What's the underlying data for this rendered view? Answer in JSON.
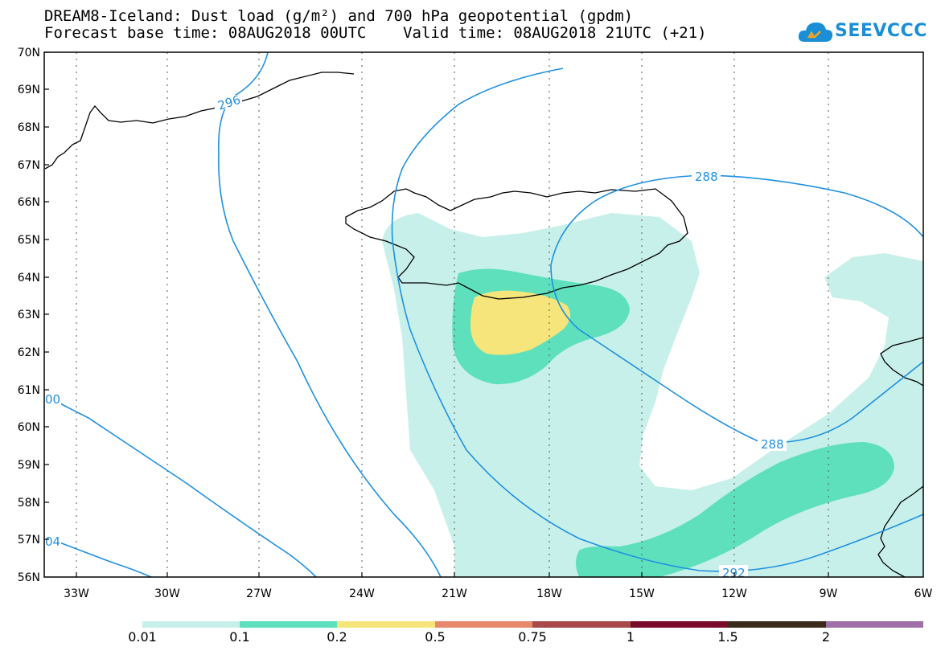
{
  "header": {
    "title_line1": "DREAM8-Iceland: Dust load (g/m²) and 700 hPa geopotential (gpdm)",
    "title_line2": "Forecast base time: 08AUG2018 00UTC    Valid time: 08AUG2018 21UTC (+21)"
  },
  "logo": {
    "text": "SEEVCCC",
    "color": "#1b8fd6"
  },
  "map": {
    "lat_ticks": [
      "70N",
      "69N",
      "68N",
      "67N",
      "66N",
      "65N",
      "64N",
      "63N",
      "62N",
      "61N",
      "60N",
      "59N",
      "58N",
      "57N",
      "56N"
    ],
    "lon_ticks": [
      "33W",
      "30W",
      "27W",
      "24W",
      "21W",
      "18W",
      "15W",
      "12W",
      "9W",
      "6W"
    ],
    "contour_labels": [
      {
        "text": "296"
      },
      {
        "text": "288"
      },
      {
        "text": "288"
      },
      {
        "text": "292"
      },
      {
        "text": "00"
      },
      {
        "text": "04"
      }
    ],
    "contour_color": "#1e90e0"
  },
  "legend": {
    "labels": [
      "0.01",
      "0.1",
      "0.2",
      "0.5",
      "0.75",
      "1",
      "1.5",
      "2"
    ],
    "colors": [
      "#c8f0ea",
      "#5fe0bd",
      "#f5e57a",
      "#e8896b",
      "#a84a4a",
      "#7a0a2a",
      "#3b2a1a",
      "#a06fa8"
    ]
  }
}
